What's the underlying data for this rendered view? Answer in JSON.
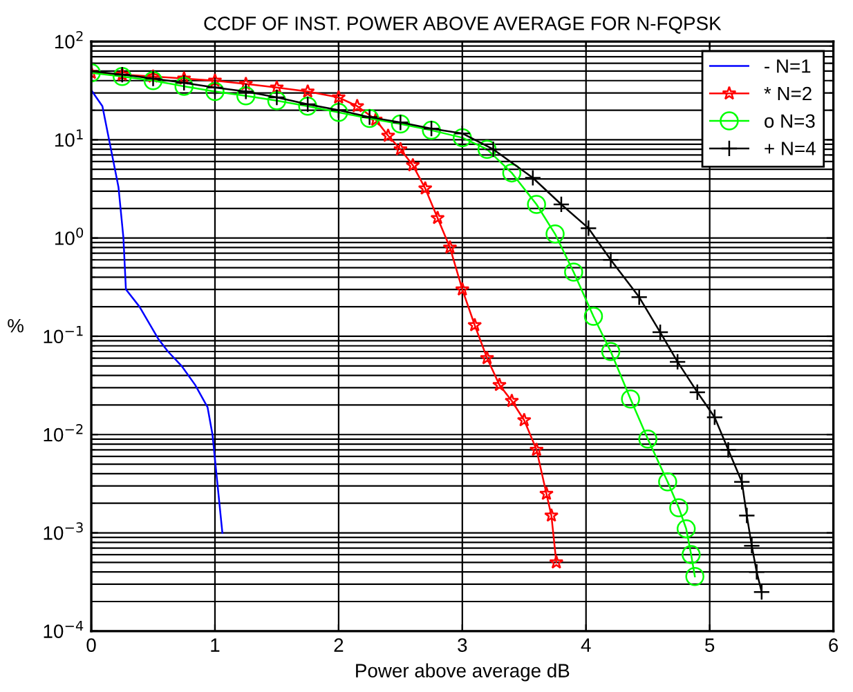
{
  "chart_data": {
    "type": "line",
    "title": "CCDF OF INST. POWER ABOVE AVERAGE FOR N-FQPSK",
    "xlabel": "Power above average dB",
    "ylabel": "%",
    "log": "y",
    "grid": true,
    "legend": "top right",
    "xlim": [
      0,
      6
    ],
    "xticks": [
      0,
      1,
      2,
      3,
      4,
      5,
      6
    ],
    "ylim": [
      0.0001,
      100
    ],
    "yticks": [
      {
        "value": 0.0001,
        "label": "10$^{−4}$"
      },
      {
        "value": 0.001,
        "label": "10$^{−3}$"
      },
      {
        "value": 0.01,
        "label": "10$^{−2}$"
      },
      {
        "value": 0.1,
        "label": "10$^{−1}$"
      },
      {
        "value": 1,
        "label": "10$^{0}$"
      },
      {
        "value": 10,
        "label": "10$^{1}$"
      },
      {
        "value": 100,
        "label": "10$^{2}$"
      }
    ],
    "series": [
      {
        "name": "- N=1",
        "color": "#0000ff",
        "marker": "none",
        "x": [
          0,
          0.09,
          0.22,
          0.26,
          0.28,
          0.39,
          0.54,
          0.62,
          0.73,
          0.84,
          0.94,
          0.98,
          1.06
        ],
        "values": [
          32,
          22,
          3.3,
          1.0,
          0.3,
          0.2,
          0.095,
          0.07,
          0.05,
          0.032,
          0.019,
          0.01,
          0.001
        ]
      },
      {
        "name": "* N=2",
        "color": "#ff0000",
        "marker": "star",
        "x": [
          0,
          0.25,
          0.5,
          0.75,
          1,
          1.25,
          1.5,
          1.75,
          2,
          2.15,
          2.3,
          2.4,
          2.5,
          2.6,
          2.7,
          2.8,
          2.9,
          3.0,
          3.1,
          3.2,
          3.3,
          3.4,
          3.5,
          3.6,
          3.68,
          3.72,
          3.76
        ],
        "values": [
          48,
          46,
          44,
          42,
          40,
          37,
          34,
          31,
          27,
          22,
          16,
          11,
          8,
          5.5,
          3.2,
          1.6,
          0.8,
          0.3,
          0.13,
          0.06,
          0.032,
          0.022,
          0.014,
          0.007,
          0.0025,
          0.0015,
          0.0005
        ]
      },
      {
        "name": "o N=3",
        "color": "#00ff00",
        "marker": "circle",
        "x": [
          0,
          0.25,
          0.5,
          0.75,
          1,
          1.25,
          1.5,
          1.75,
          2,
          2.25,
          2.5,
          2.75,
          3,
          3.2,
          3.4,
          3.6,
          3.75,
          3.9,
          4.06,
          4.2,
          4.36,
          4.5,
          4.66,
          4.75,
          4.81,
          4.85,
          4.88
        ],
        "values": [
          48,
          44,
          40,
          35,
          31,
          28,
          25,
          22,
          19,
          16.5,
          14.5,
          12.5,
          10.5,
          8,
          4.6,
          2.2,
          1.1,
          0.45,
          0.16,
          0.07,
          0.023,
          0.009,
          0.0033,
          0.0018,
          0.0011,
          0.0006,
          0.00036
        ]
      },
      {
        "name": "+ N=4",
        "color": "#000000",
        "marker": "cross",
        "x": [
          0,
          0.25,
          0.5,
          0.75,
          1,
          1.25,
          1.5,
          1.75,
          2,
          2.25,
          2.5,
          2.75,
          3,
          3.25,
          3.57,
          3.8,
          4.02,
          4.2,
          4.43,
          4.6,
          4.74,
          4.9,
          5.04,
          5.15,
          5.26,
          5.3,
          5.34,
          5.38,
          5.42
        ],
        "values": [
          50,
          46,
          42,
          38,
          34,
          31,
          27,
          23,
          20,
          17,
          15,
          13,
          11.6,
          8,
          4.1,
          2.2,
          1.26,
          0.6,
          0.25,
          0.11,
          0.055,
          0.027,
          0.015,
          0.007,
          0.0033,
          0.0015,
          0.00074,
          0.0004,
          0.00025
        ]
      }
    ]
  }
}
